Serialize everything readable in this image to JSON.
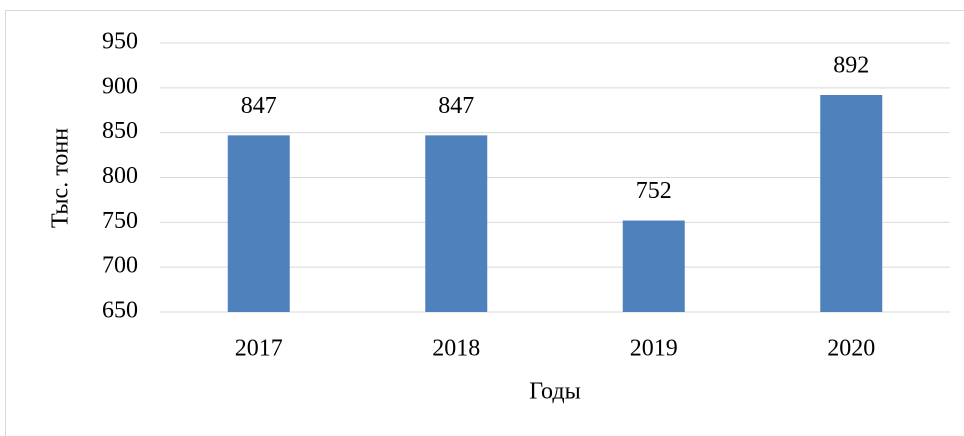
{
  "chart_data": {
    "type": "bar",
    "y_axis_label": "Тыс. тонн",
    "x_axis_label": "Годы",
    "categories": [
      "2017",
      "2018",
      "2019",
      "2020"
    ],
    "values": [
      847,
      847,
      752,
      892
    ],
    "color": "#4f81bd",
    "ylim": [
      650,
      950
    ],
    "yticks": [
      650,
      700,
      750,
      800,
      850,
      900,
      950
    ],
    "grid": true
  }
}
